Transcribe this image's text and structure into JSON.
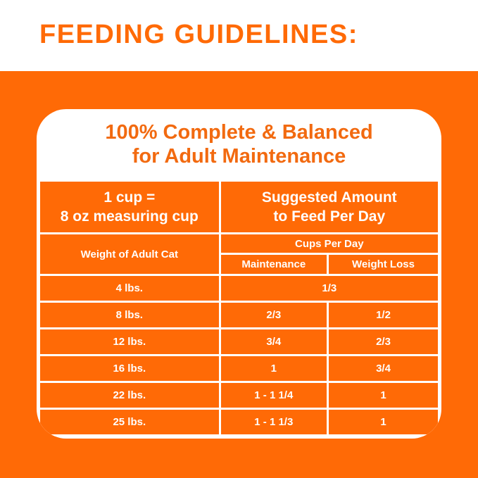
{
  "heading": "FEEDING GUIDELINES:",
  "subtitle_line1": "100% Complete & Balanced",
  "subtitle_line2": "for Adult Maintenance",
  "table": {
    "header_left_line1": "1 cup =",
    "header_left_line2": "8 oz measuring cup",
    "header_right_line1": "Suggested Amount",
    "header_right_line2": "to Feed Per Day",
    "weight_header": "Weight of Adult Cat",
    "cups_header": "Cups Per Day",
    "maintenance_header": "Maintenance",
    "weight_loss_header": "Weight Loss",
    "rows": [
      {
        "weight": "4 lbs.",
        "combined": "1/3"
      },
      {
        "weight": "8 lbs.",
        "maintenance": "2/3",
        "weight_loss": "1/2"
      },
      {
        "weight": "12 lbs.",
        "maintenance": "3/4",
        "weight_loss": "2/3"
      },
      {
        "weight": "16 lbs.",
        "maintenance": "1",
        "weight_loss": "3/4"
      },
      {
        "weight": "22 lbs.",
        "maintenance": "1 - 1 1/4",
        "weight_loss": "1"
      },
      {
        "weight": "25 lbs.",
        "maintenance": "1 - 1 1/3",
        "weight_loss": "1"
      }
    ]
  },
  "colors": {
    "orange": "#ff6a06",
    "white": "#ffffff"
  }
}
